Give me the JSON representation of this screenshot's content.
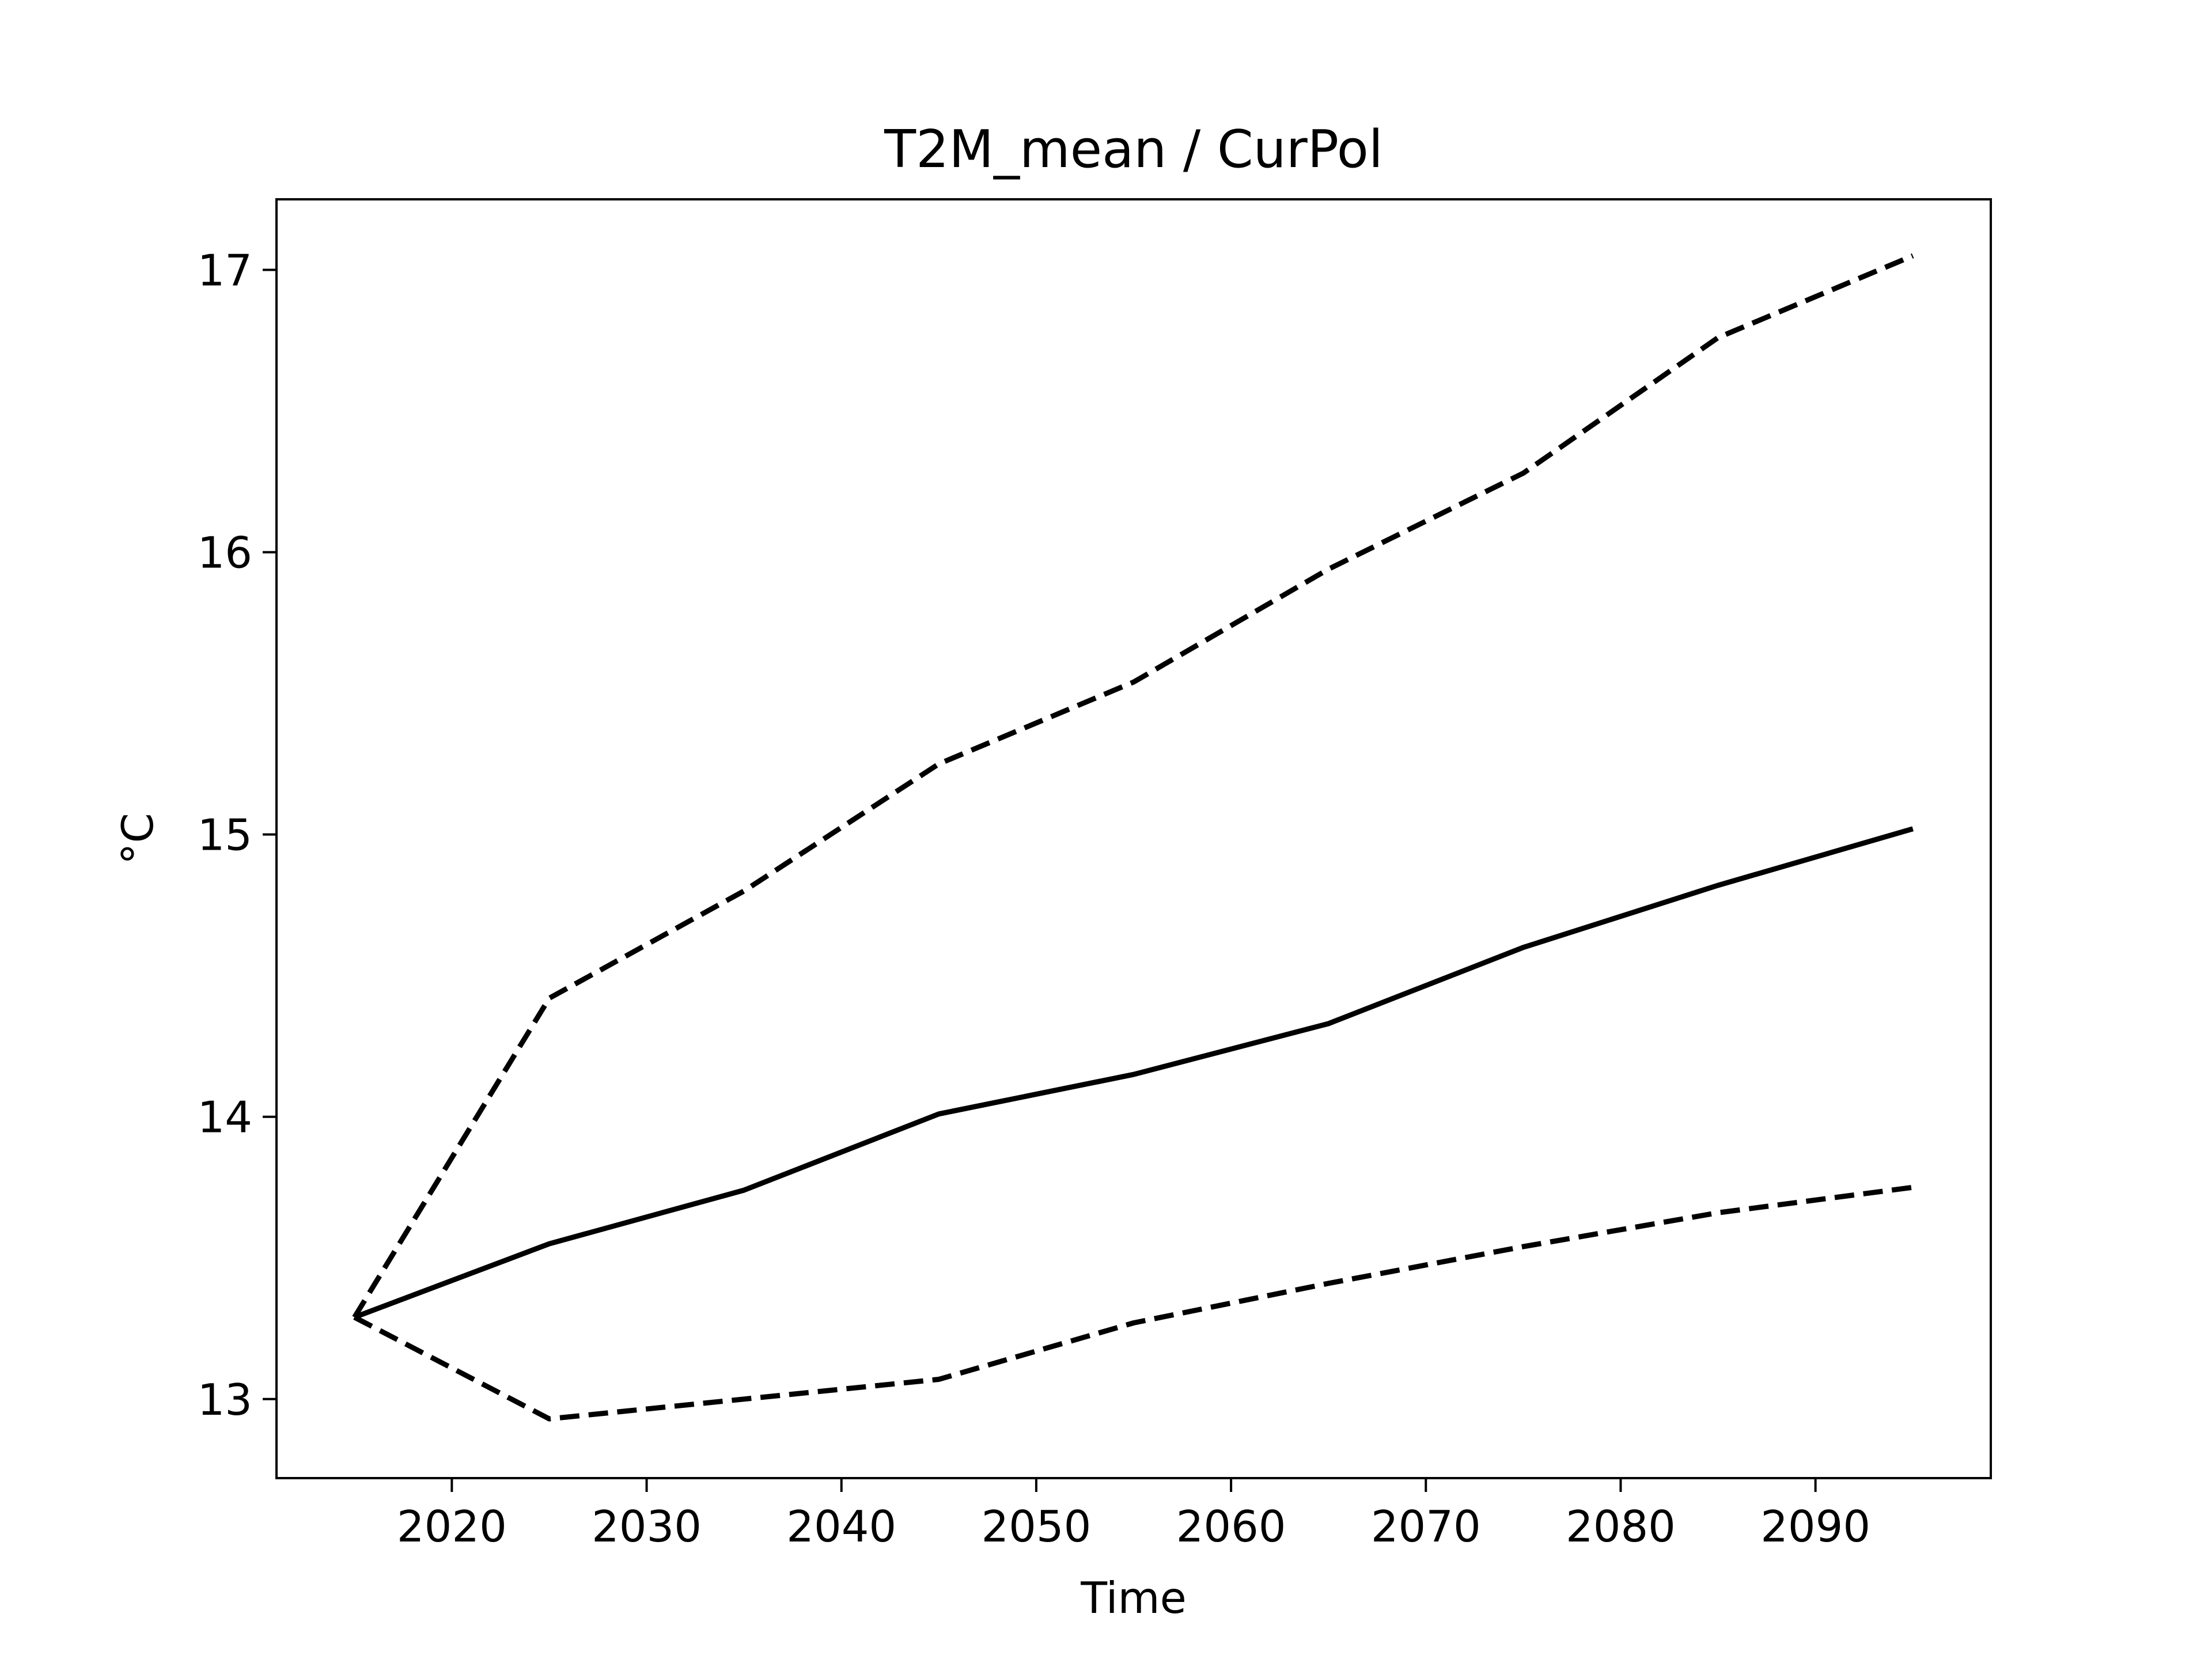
{
  "chart_data": {
    "type": "line",
    "title": "T2M_mean / CurPol",
    "xlabel": "Time",
    "ylabel": "°C",
    "xlim": [
      2011,
      2099
    ],
    "ylim": [
      12.72,
      17.25
    ],
    "xticks": [
      2020,
      2030,
      2040,
      2050,
      2060,
      2070,
      2080,
      2090
    ],
    "yticks": [
      13,
      14,
      15,
      16,
      17
    ],
    "grid": false,
    "legend": "none",
    "x": [
      2015,
      2025,
      2035,
      2045,
      2055,
      2065,
      2075,
      2085,
      2095
    ],
    "series": [
      {
        "style": "dashed",
        "color": "#000000",
        "values": [
          13.29,
          14.42,
          14.8,
          15.25,
          15.54,
          15.94,
          16.28,
          16.76,
          17.05
        ]
      },
      {
        "style": "solid",
        "color": "#000000",
        "values": [
          13.29,
          13.55,
          13.74,
          14.01,
          14.15,
          14.33,
          14.6,
          14.82,
          15.02
        ]
      },
      {
        "style": "dashed",
        "color": "#000000",
        "values": [
          13.29,
          12.93,
          13.0,
          13.07,
          13.27,
          13.41,
          13.54,
          13.66,
          13.75
        ]
      }
    ]
  }
}
